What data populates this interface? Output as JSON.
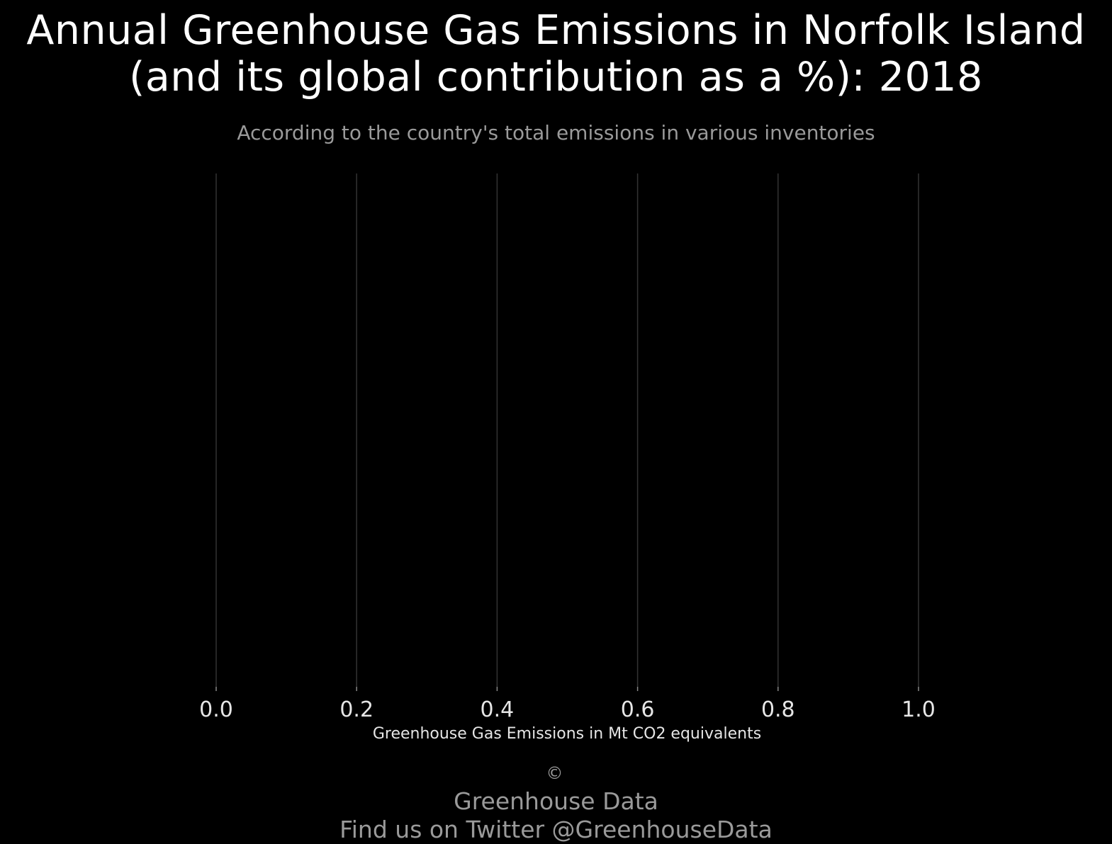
{
  "chart_data": {
    "type": "bar",
    "orientation": "horizontal",
    "title_line1": "Annual Greenhouse Gas Emissions in Norfolk Island",
    "title_line2": "(and its global contribution as a %): 2018",
    "subtitle": "According to the country's total emissions in various inventories",
    "xlabel": "Greenhouse Gas Emissions in Mt CO2 equivalents",
    "ylabel": "",
    "xlim": [
      0,
      1.0
    ],
    "x_ticks": [
      "0.0",
      "0.2",
      "0.4",
      "0.6",
      "0.8",
      "1.0"
    ],
    "categories": [],
    "values": [],
    "grid": "vertical",
    "colors": {
      "background": "#000000",
      "text": "#ffffff",
      "muted_text": "#9a9a9a",
      "grid": "#333333"
    }
  },
  "footer": {
    "copyright_symbol": "©",
    "credit": "Greenhouse Data",
    "twitter_line": "Find us on Twitter @GreenhouseData"
  }
}
